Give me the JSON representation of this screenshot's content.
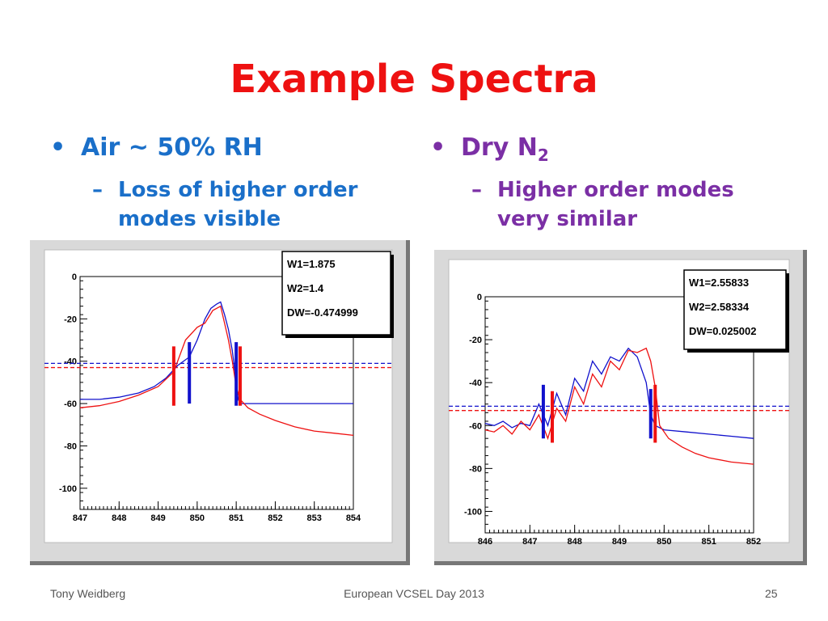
{
  "slide": {
    "title": "Example Spectra",
    "footer_left": "Tony Weidberg",
    "footer_center": "European VCSEL Day 2013",
    "footer_right": "25"
  },
  "left": {
    "bullet": "•",
    "heading": "Air ~ 50% RH",
    "dash": "–",
    "sub_line1": "Loss of higher order",
    "sub_line2": "modes visible"
  },
  "right": {
    "bullet": "•",
    "heading_main": "Dry N",
    "heading_sub": "2",
    "dash": "–",
    "sub_line1": "Higher order modes",
    "sub_line2": "very similar"
  },
  "colors": {
    "red": "#ee1111",
    "blue": "#1111cc",
    "title": "#ee1111",
    "left_text": "#1a6fc9",
    "right_text": "#7b2fa5"
  },
  "chart_data": [
    {
      "type": "line",
      "x_ticks": [
        847,
        848,
        849,
        850,
        851,
        852,
        853,
        854
      ],
      "y_ticks": [
        0,
        -20,
        -40,
        -60,
        -80,
        -100
      ],
      "xlim": [
        847,
        854
      ],
      "ylim": [
        -110,
        0
      ],
      "stats": [
        "W1=1.875",
        "W2=1.4",
        "DW=-0.474999"
      ],
      "hlines": [
        {
          "color": "blue",
          "y": -41,
          "style": "dashed"
        },
        {
          "color": "red",
          "y": -43,
          "style": "dashed"
        }
      ],
      "markers": [
        {
          "color": "red",
          "x": 849.4,
          "y_top": -33,
          "y_bottom": -61
        },
        {
          "color": "blue",
          "x": 849.8,
          "y_top": -31,
          "y_bottom": -60
        },
        {
          "color": "blue",
          "x": 851.0,
          "y_top": -31,
          "y_bottom": -61
        },
        {
          "color": "red",
          "x": 851.1,
          "y_top": -33,
          "y_bottom": -61
        }
      ],
      "series": [
        {
          "color": "blue",
          "x": [
            847,
            847.5,
            848.0,
            848.5,
            848.9,
            849.2,
            849.5,
            849.8,
            850.0,
            850.2,
            850.35,
            850.5,
            850.6,
            850.7,
            850.8,
            850.9,
            851.0,
            851.05,
            851.1,
            852,
            853,
            854
          ],
          "y": [
            -58,
            -58,
            -57,
            -55,
            -52,
            -48,
            -42,
            -38,
            -30,
            -20,
            -15,
            -13,
            -12,
            -18,
            -25,
            -35,
            -50,
            -58,
            -60,
            -60,
            -60,
            -60
          ]
        },
        {
          "color": "red",
          "x": [
            847,
            847.5,
            848.0,
            848.5,
            849.0,
            849.4,
            849.7,
            850.0,
            850.2,
            850.4,
            850.6,
            850.7,
            850.8,
            850.9,
            851.0,
            851.1,
            851.3,
            851.6,
            852.0,
            852.5,
            853.0,
            853.5,
            854.0
          ],
          "y": [
            -62,
            -61,
            -59,
            -56,
            -52,
            -45,
            -30,
            -24,
            -22,
            -16,
            -14,
            -22,
            -30,
            -40,
            -52,
            -58,
            -62,
            -65,
            -68,
            -71,
            -73,
            -74,
            -75
          ]
        }
      ]
    },
    {
      "type": "line",
      "x_ticks": [
        846,
        847,
        848,
        849,
        850,
        851,
        852
      ],
      "y_ticks": [
        0,
        -20,
        -40,
        -60,
        -80,
        -100
      ],
      "xlim": [
        846,
        852
      ],
      "ylim": [
        -110,
        0
      ],
      "stats": [
        "W1=2.55833",
        "W2=2.58334",
        "DW=0.025002"
      ],
      "hlines": [
        {
          "color": "blue",
          "y": -51,
          "style": "dashed"
        },
        {
          "color": "red",
          "y": -53,
          "style": "dashed"
        }
      ],
      "markers": [
        {
          "color": "blue",
          "x": 847.3,
          "y_top": -41,
          "y_bottom": -66
        },
        {
          "color": "red",
          "x": 847.5,
          "y_top": -44,
          "y_bottom": -68
        },
        {
          "color": "blue",
          "x": 849.7,
          "y_top": -43,
          "y_bottom": -66
        },
        {
          "color": "red",
          "x": 849.8,
          "y_top": -41,
          "y_bottom": -68
        }
      ],
      "series": [
        {
          "color": "blue",
          "x": [
            846.0,
            846.2,
            846.4,
            846.6,
            846.8,
            847.0,
            847.2,
            847.4,
            847.6,
            847.8,
            848.0,
            848.2,
            848.4,
            848.6,
            848.8,
            849.0,
            849.2,
            849.4,
            849.6,
            849.7,
            849.8,
            850.0,
            850.5,
            851.0,
            851.5,
            852.0
          ],
          "y": [
            -59,
            -60,
            -58,
            -61,
            -59,
            -60,
            -50,
            -60,
            -45,
            -55,
            -38,
            -44,
            -30,
            -36,
            -28,
            -30,
            -24,
            -28,
            -40,
            -55,
            -60,
            -62,
            -63,
            -64,
            -65,
            -66
          ]
        },
        {
          "color": "red",
          "x": [
            846.0,
            846.2,
            846.4,
            846.6,
            846.8,
            847.0,
            847.2,
            847.4,
            847.6,
            847.8,
            848.0,
            848.2,
            848.4,
            848.6,
            848.8,
            849.0,
            849.2,
            849.4,
            849.6,
            849.7,
            849.8,
            849.9,
            850.1,
            850.4,
            850.7,
            851.0,
            851.5,
            852.0
          ],
          "y": [
            -62,
            -63,
            -60,
            -64,
            -58,
            -62,
            -55,
            -66,
            -52,
            -58,
            -42,
            -50,
            -36,
            -42,
            -30,
            -34,
            -25,
            -26,
            -24,
            -30,
            -42,
            -60,
            -66,
            -70,
            -73,
            -75,
            -77,
            -78
          ]
        }
      ]
    }
  ]
}
